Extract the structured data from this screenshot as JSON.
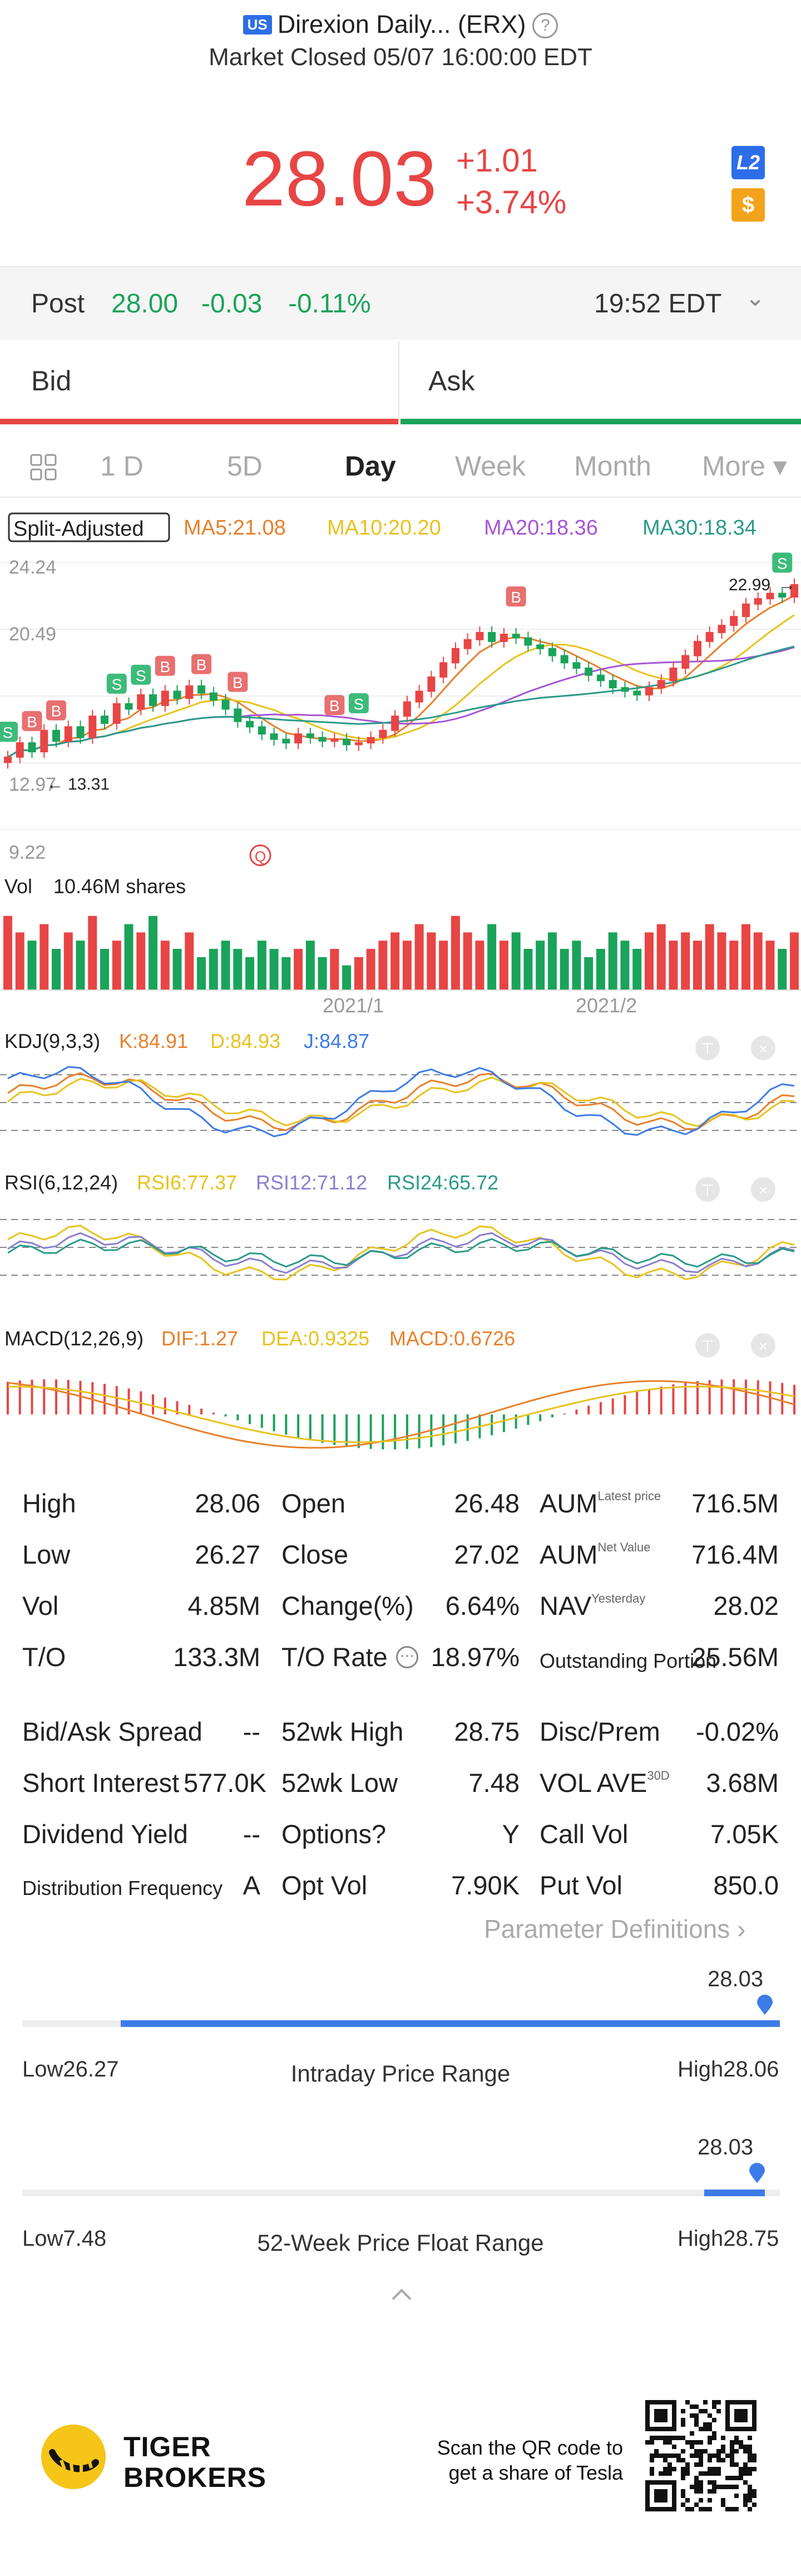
{
  "header": {
    "market_badge": "US",
    "title": "Direxion Daily... (ERX)",
    "status": "Market Closed 05/07 16:00:00 EDT"
  },
  "quote": {
    "price": "28.03",
    "change": "+1.01",
    "change_pct": "+3.74%",
    "l2_badge": "L2",
    "dollar_badge": "$"
  },
  "post": {
    "label": "Post",
    "price": "28.00",
    "change": "-0.03",
    "change_pct": "-0.11%",
    "time": "19:52 EDT"
  },
  "bidask": {
    "bid": "Bid",
    "ask": "Ask"
  },
  "tabs": [
    "1 D",
    "5D",
    "Day",
    "Week",
    "Month",
    "More ▾"
  ],
  "active_tab": "Day",
  "chart": {
    "adjust_label": "Split-Adjusted",
    "ma": [
      {
        "label": "MA5:21.08",
        "color": "#e8802a"
      },
      {
        "label": "MA10:20.20",
        "color": "#e8c21c"
      },
      {
        "label": "MA20:18.36",
        "color": "#a555d6"
      },
      {
        "label": "MA30:18.34",
        "color": "#2a9a8a"
      }
    ],
    "price_axis": [
      "24.24",
      "20.49",
      "12.97",
      "9.22"
    ],
    "high_marker": "22.99",
    "low_marker": "13.31",
    "signal_buy": "B",
    "signal_sell": "S",
    "q_marker": "Q",
    "vol_label": "Vol",
    "vol_value": "10.46M shares",
    "date_labels": [
      "2021/1",
      "2021/2"
    ],
    "kdj": {
      "name": "KDJ(9,3,3)",
      "k": "K:84.91",
      "d": "D:84.93",
      "j": "J:84.87",
      "k_color": "#e8802a",
      "d_color": "#e8c21c",
      "j_color": "#3d7be8"
    },
    "rsi": {
      "name": "RSI(6,12,24)",
      "r6": "RSI6:77.37",
      "r12": "RSI12:71.12",
      "r24": "RSI24:65.72",
      "r6_color": "#e8c21c",
      "r12_color": "#8a7fd0",
      "r24_color": "#2a9a8a"
    },
    "macd": {
      "name": "MACD(12,26,9)",
      "dif": "DIF:1.27",
      "dea": "DEA:0.9325",
      "macd": "MACD:0.6726",
      "dif_color": "#e8802a",
      "dea_color": "#e8c21c",
      "macd_color": "#e8802a"
    }
  },
  "chart_data": {
    "type": "candlestick",
    "price_range": [
      9.22,
      24.24
    ],
    "closes": [
      13.3,
      14.1,
      13.6,
      14.8,
      14.2,
      15.0,
      14.4,
      15.6,
      15.2,
      16.3,
      16.0,
      16.8,
      16.2,
      17.0,
      16.6,
      17.3,
      16.9,
      16.5,
      16.0,
      15.3,
      15.0,
      14.6,
      14.3,
      14.1,
      14.6,
      14.4,
      14.2,
      14.3,
      14.0,
      14.1,
      14.4,
      14.8,
      15.6,
      16.4,
      17.0,
      17.8,
      18.6,
      19.4,
      19.9,
      20.3,
      19.8,
      20.2,
      20.0,
      19.6,
      19.4,
      19.0,
      18.6,
      18.3,
      17.9,
      17.6,
      17.2,
      17.0,
      16.8,
      17.2,
      17.6,
      18.3,
      19.0,
      19.8,
      20.3,
      20.7,
      21.2,
      21.9,
      22.2,
      22.5,
      22.3,
      22.99
    ],
    "volume": [
      0.9,
      0.7,
      0.6,
      0.8,
      0.5,
      0.7,
      0.6,
      0.9,
      0.5,
      0.6,
      0.8,
      0.7,
      0.9,
      0.6,
      0.5,
      0.7,
      0.4,
      0.5,
      0.6,
      0.5,
      0.4,
      0.6,
      0.5,
      0.4,
      0.5,
      0.6,
      0.4,
      0.5,
      0.3,
      0.4,
      0.5,
      0.6,
      0.7,
      0.6,
      0.8,
      0.7,
      0.6,
      0.9,
      0.7,
      0.6,
      0.8,
      0.6,
      0.7,
      0.5,
      0.6,
      0.7,
      0.5,
      0.6,
      0.4,
      0.5,
      0.7,
      0.6,
      0.5,
      0.7,
      0.8,
      0.6,
      0.7,
      0.6,
      0.8,
      0.7,
      0.6,
      0.8,
      0.7,
      0.6,
      0.5,
      0.7
    ]
  },
  "stats": {
    "col1": [
      {
        "label": "High",
        "value": "28.06"
      },
      {
        "label": "Low",
        "value": "26.27"
      },
      {
        "label": "Vol",
        "value": "4.85M"
      },
      {
        "label": "T/O",
        "value": "133.3M"
      }
    ],
    "col2": [
      {
        "label": "Open",
        "value": "26.48"
      },
      {
        "label": "Close",
        "value": "27.02"
      },
      {
        "label": "Change(%)",
        "value": "6.64%"
      },
      {
        "label": "T/O Rate",
        "value": "18.97%"
      }
    ],
    "col3": [
      {
        "label": "AUM",
        "sup": "Latest price",
        "value": "716.5M"
      },
      {
        "label": "AUM",
        "sup": "Net Value",
        "value": "716.4M"
      },
      {
        "label": "NAV",
        "sup": "Yesterday",
        "value": "28.02"
      },
      {
        "label": "Outstanding Portion",
        "sup": "",
        "value": "25.56M"
      }
    ],
    "row2_col1": [
      {
        "label": "Bid/Ask Spread",
        "value": "--"
      },
      {
        "label": "Short Interest",
        "value": "577.0K"
      },
      {
        "label": "Dividend Yield",
        "value": "--"
      },
      {
        "label": "Distribution Frequency",
        "value": "A"
      }
    ],
    "row2_col2": [
      {
        "label": "52wk High",
        "value": "28.75"
      },
      {
        "label": "52wk Low",
        "value": "7.48"
      },
      {
        "label": "Options?",
        "value": "Y"
      },
      {
        "label": "Opt Vol",
        "value": "7.90K"
      }
    ],
    "row2_col3": [
      {
        "label": "Disc/Prem",
        "sup": "",
        "value": "-0.02%"
      },
      {
        "label": "VOL AVE",
        "sup": "30D",
        "value": "3.68M"
      },
      {
        "label": "Call Vol",
        "sup": "",
        "value": "7.05K"
      },
      {
        "label": "Put Vol",
        "sup": "",
        "value": "850.0"
      }
    ],
    "param_def": "Parameter Definitions"
  },
  "intraday": {
    "low_label": "Low26.27",
    "high_label": "High28.06",
    "title": "Intraday Price Range",
    "current": "28.03",
    "fill_start": 0.13,
    "fill_end": 1.0,
    "marker": 0.98
  },
  "week52": {
    "low_label": "Low7.48",
    "high_label": "High28.75",
    "title": "52-Week Price Float Range",
    "current": "28.03",
    "fill_start": 0.9,
    "fill_end": 0.98,
    "marker": 0.97
  },
  "footer": {
    "brand1": "TIGER",
    "brand2": "BROKERS",
    "qr_line1": "Scan the QR code to",
    "qr_line2": "get a share of Tesla"
  },
  "colors": {
    "up": "#e84545",
    "down": "#1aa35a",
    "accent": "#3d7be8"
  }
}
